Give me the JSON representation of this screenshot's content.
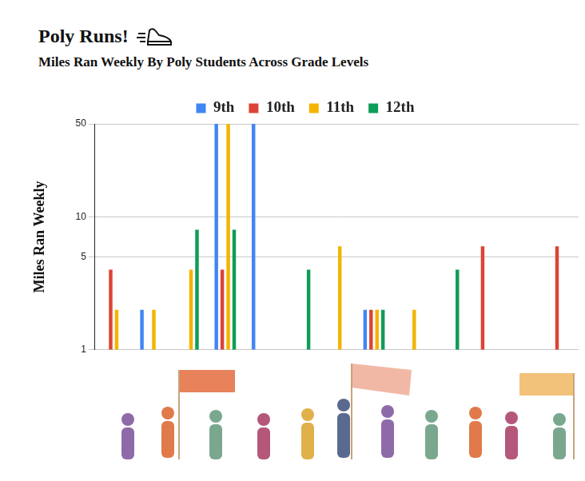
{
  "chart_data": {
    "type": "bar",
    "title": "Poly Runs!",
    "subtitle": "Miles Ran Weekly By Poly Students Across Grade Levels",
    "y_label": "Miles Ran Weekly",
    "categories": [
      null,
      null,
      null,
      null,
      null,
      null,
      null,
      null,
      null,
      null,
      null,
      null,
      null
    ],
    "series": [
      {
        "name": "9th",
        "color": "#4285f4",
        "values": [
          null,
          2,
          null,
          50,
          50,
          null,
          null,
          2,
          null,
          null,
          null,
          null,
          null
        ]
      },
      {
        "name": "10th",
        "color": "#db4437",
        "values": [
          4,
          null,
          null,
          4,
          null,
          null,
          null,
          2,
          null,
          null,
          6,
          null,
          6
        ]
      },
      {
        "name": "11th",
        "color": "#f4b400",
        "values": [
          2,
          2,
          4,
          50,
          null,
          null,
          6,
          2,
          2,
          null,
          null,
          null,
          null
        ]
      },
      {
        "name": "12th",
        "color": "#0f9d58",
        "values": [
          null,
          null,
          8,
          8,
          null,
          4,
          null,
          2,
          null,
          4,
          null,
          null,
          null
        ]
      }
    ],
    "log": "y",
    "ylim": [
      1,
      50
    ],
    "yticks": [
      1,
      5,
      10,
      50
    ],
    "grid": true,
    "legend": "top",
    "tick_labels": "y"
  }
}
